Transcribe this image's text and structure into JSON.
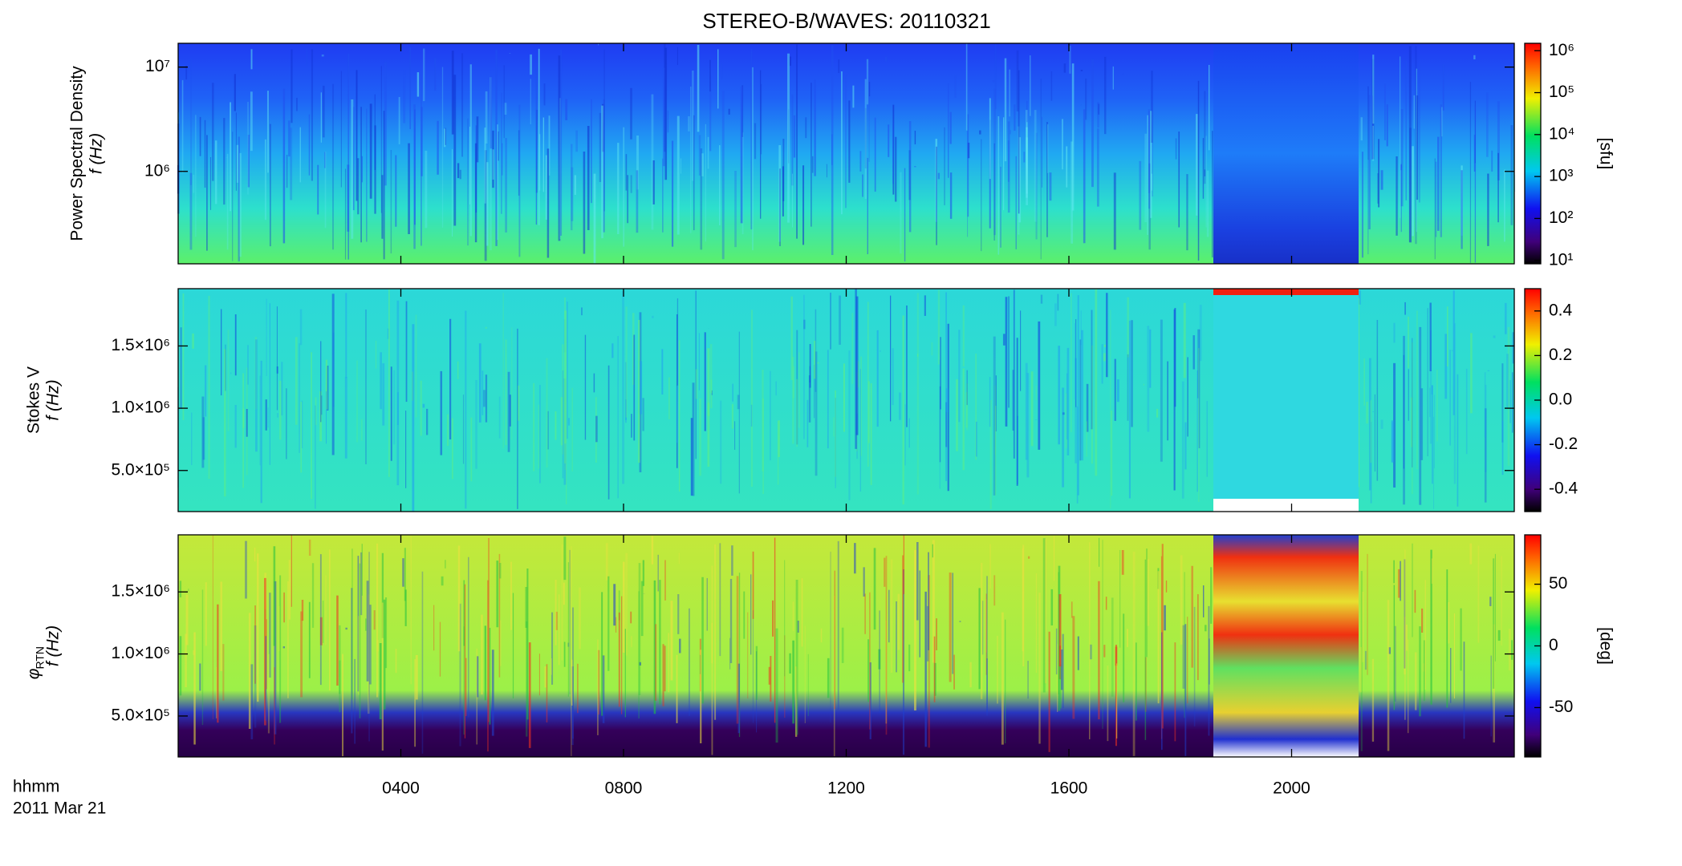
{
  "chart_data": [
    {
      "type": "heatmap",
      "title": "STEREO-B/WAVES: 20110321",
      "ylabel": [
        "Power Spectral Density",
        "f (Hz)"
      ],
      "yscale": "log",
      "xlim": [
        0,
        24
      ],
      "ylim": [
        130000,
        16900000
      ],
      "yticks": [
        {
          "value": 1000000,
          "label": "10⁶"
        },
        {
          "value": 10000000,
          "label": "10⁷"
        }
      ],
      "colorbar": {
        "scale": "log",
        "lim": [
          8.3,
          1500000
        ],
        "label": "[sfu]",
        "ticks": [
          {
            "value": 10,
            "label": "10¹"
          },
          {
            "value": 100,
            "label": "10²"
          },
          {
            "value": 1000,
            "label": "10³"
          },
          {
            "value": 10000,
            "label": "10⁴"
          },
          {
            "value": 100000,
            "label": "10⁵"
          },
          {
            "value": 1000000,
            "label": "10⁶"
          }
        ]
      }
    },
    {
      "type": "heatmap",
      "ylabel": [
        "Stokes V",
        "f (Hz)"
      ],
      "yscale": "linear",
      "xlim": [
        0,
        24
      ],
      "ylim": [
        170000,
        1960000
      ],
      "yticks": [
        {
          "value": 500000,
          "label": "5.0×10⁵"
        },
        {
          "value": 1000000,
          "label": "1.0×10⁶"
        },
        {
          "value": 1500000,
          "label": "1.5×10⁶"
        }
      ],
      "colorbar": {
        "scale": "linear",
        "lim": [
          -0.5,
          0.5
        ],
        "ticks": [
          -0.4,
          -0.2,
          {
            "value": 0,
            "label": "0.0"
          },
          0.2,
          0.4
        ]
      }
    },
    {
      "type": "heatmap",
      "ylabel_symbol": "φ",
      "ylabel_subscript": "RTN",
      "ylabel": [
        "f (Hz)"
      ],
      "yscale": "linear",
      "xlim": [
        0,
        24
      ],
      "ylim": [
        170000,
        1960000
      ],
      "yticks": [
        {
          "value": 500000,
          "label": "5.0×10⁵"
        },
        {
          "value": 1000000,
          "label": "1.0×10⁶"
        },
        {
          "value": 1500000,
          "label": "1.5×10⁶"
        }
      ],
      "xticks": [
        {
          "value": 4,
          "label": "0400"
        },
        {
          "value": 8,
          "label": "0800"
        },
        {
          "value": 12,
          "label": "1200"
        },
        {
          "value": 16,
          "label": "1600"
        },
        {
          "value": 20,
          "label": "2000"
        }
      ],
      "xlabel": [
        "hhmm",
        "2011 Mar 21"
      ],
      "colorbar": {
        "scale": "linear",
        "lim": [
          -90,
          90
        ],
        "label": "[deg]",
        "ticks": [
          -50,
          0,
          50
        ]
      }
    }
  ]
}
